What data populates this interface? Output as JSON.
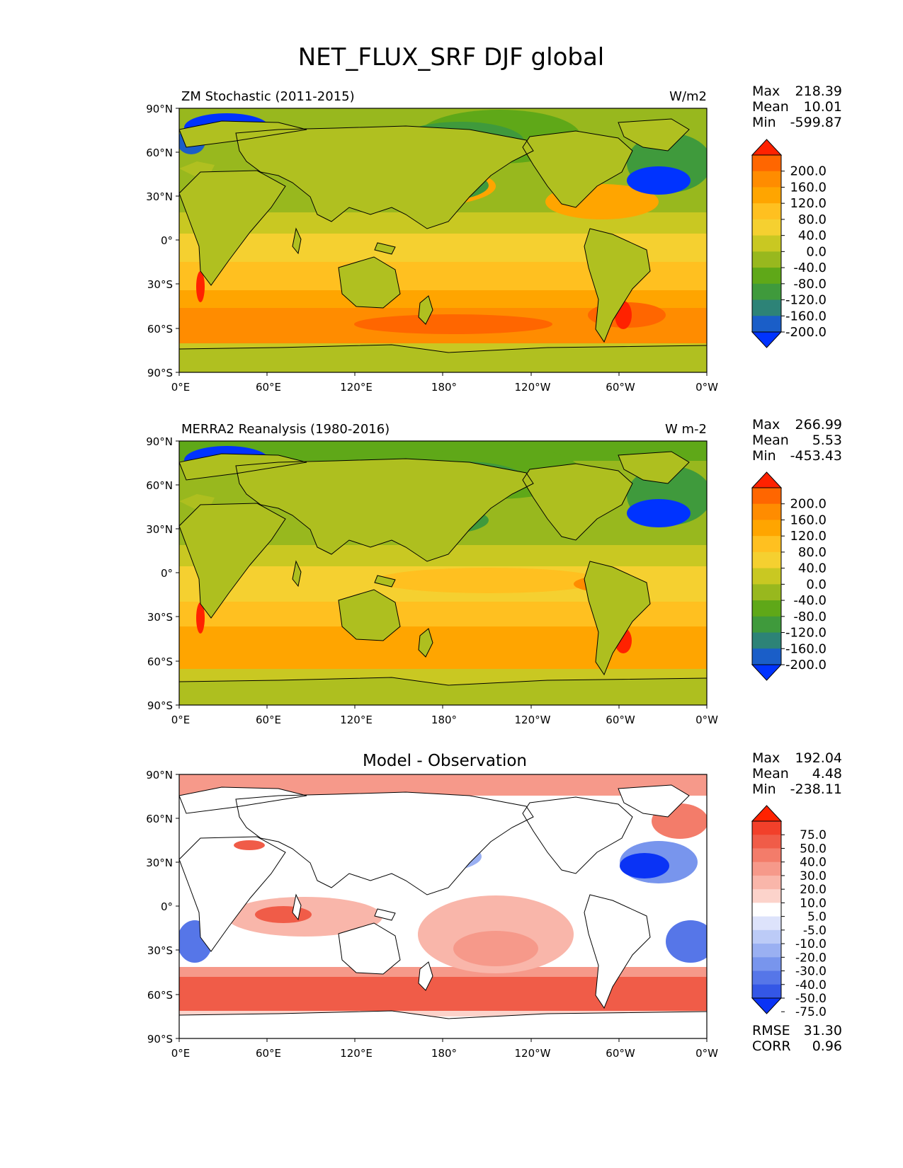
{
  "figure": {
    "title": "NET_FLUX_SRF DJF global"
  },
  "axes": {
    "lat_labels": [
      "90°N",
      "60°N",
      "30°N",
      "0°",
      "30°S",
      "60°S",
      "90°S"
    ],
    "lon_labels": [
      "0°E",
      "60°E",
      "120°E",
      "180°",
      "120°W",
      "60°W",
      "0°W"
    ]
  },
  "panels": [
    {
      "id": "test",
      "left_title": "ZM Stochastic (2011-2015)",
      "center_title": "",
      "right_title": "W/m2",
      "stats": [
        {
          "label": "Max",
          "value": "218.39"
        },
        {
          "label": "Mean",
          "value": "10.01"
        },
        {
          "label": "Min",
          "value": "-599.87"
        }
      ],
      "colorbar": {
        "labels": [
          "200.0",
          "160.0",
          "120.0",
          "80.0",
          "40.0",
          "0.0",
          "-40.0",
          "-80.0",
          "-120.0",
          "-160.0",
          "-200.0"
        ],
        "colors": [
          "#ff2200",
          "#ff6600",
          "#ff8c00",
          "#ffa500",
          "#ffc020",
          "#f5d030",
          "#c9c822",
          "#98b81e",
          "#5fa818",
          "#3f9a3c",
          "#2d8377",
          "#1a5ec8",
          "#0033ff"
        ]
      }
    },
    {
      "id": "reference",
      "left_title": "MERRA2 Reanalysis (1980-2016)",
      "center_title": "",
      "right_title": "W m-2",
      "stats": [
        {
          "label": "Max",
          "value": "266.99"
        },
        {
          "label": "Mean",
          "value": "5.53"
        },
        {
          "label": "Min",
          "value": "-453.43"
        }
      ],
      "colorbar": {
        "labels": [
          "200.0",
          "160.0",
          "120.0",
          "80.0",
          "40.0",
          "0.0",
          "-40.0",
          "-80.0",
          "-120.0",
          "-160.0",
          "-200.0"
        ],
        "colors": [
          "#ff2200",
          "#ff6600",
          "#ff8c00",
          "#ffa500",
          "#ffc020",
          "#f5d030",
          "#c9c822",
          "#98b81e",
          "#5fa818",
          "#3f9a3c",
          "#2d8377",
          "#1a5ec8",
          "#0033ff"
        ]
      }
    },
    {
      "id": "difference",
      "left_title": "",
      "center_title": "Model - Observation",
      "right_title": "",
      "stats": [
        {
          "label": "Max",
          "value": "192.04"
        },
        {
          "label": "Mean",
          "value": "4.48"
        },
        {
          "label": "Min",
          "value": "-238.11"
        }
      ],
      "colorbar": {
        "labels": [
          "75.0",
          "50.0",
          "40.0",
          "30.0",
          "20.0",
          "10.0",
          "5.0",
          "-5.0",
          "-10.0",
          "-20.0",
          "-30.0",
          "-40.0",
          "-50.0",
          "-75.0"
        ],
        "colors": [
          "#ff2200",
          "#f2402a",
          "#f05c48",
          "#f37c6a",
          "#f6998a",
          "#f9b6aa",
          "#fcd3cb",
          "#ffffff",
          "#dde3fb",
          "#bccbf7",
          "#9ab0f2",
          "#7895ed",
          "#5676e8",
          "#3457e6",
          "#0a33f5"
        ]
      },
      "metrics": [
        {
          "label": "RMSE",
          "value": "31.30"
        },
        {
          "label": "CORR",
          "value": "0.96"
        }
      ]
    }
  ]
}
